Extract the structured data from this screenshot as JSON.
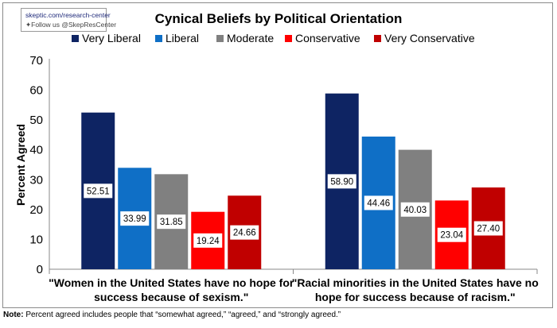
{
  "source": {
    "url": "skeptic.com/research-center",
    "follow": "Follow us @SkepResCenter"
  },
  "note": {
    "label": "Note:",
    "text": " Percent agreed includes people that “somewhat agreed,” “agreed,” and “strongly agreed.”"
  },
  "chart_data": {
    "type": "bar",
    "title": "Cynical Beliefs by Political Orientation",
    "xlabel": "",
    "ylabel": "Percent Agreed",
    "ylim": [
      0,
      70
    ],
    "yticks": [
      0,
      10,
      20,
      30,
      40,
      50,
      60,
      70
    ],
    "grid": false,
    "legend_position": "top",
    "categories": [
      [
        "\"Women in the United States have no hope for",
        "success because of sexism.\""
      ],
      [
        "\"Racial minorities in the United States have no",
        "hope for success because of racism.\""
      ]
    ],
    "series": [
      {
        "name": "Very Liberal",
        "color": "#0e2463",
        "values": [
          52.51,
          58.9
        ],
        "labels": [
          "52.51",
          "58.90"
        ]
      },
      {
        "name": "Liberal",
        "color": "#0f6fc6",
        "values": [
          33.99,
          44.46
        ],
        "labels": [
          "33.99",
          "44.46"
        ]
      },
      {
        "name": "Moderate",
        "color": "#808080",
        "values": [
          31.85,
          40.03
        ],
        "labels": [
          "31.85",
          "40.03"
        ]
      },
      {
        "name": "Conservative",
        "color": "#ff0000",
        "values": [
          19.24,
          23.04
        ],
        "labels": [
          "19.24",
          "23.04"
        ]
      },
      {
        "name": "Very Conservative",
        "color": "#c00000",
        "values": [
          24.66,
          27.4
        ],
        "labels": [
          "24.66",
          "27.40"
        ]
      }
    ]
  }
}
